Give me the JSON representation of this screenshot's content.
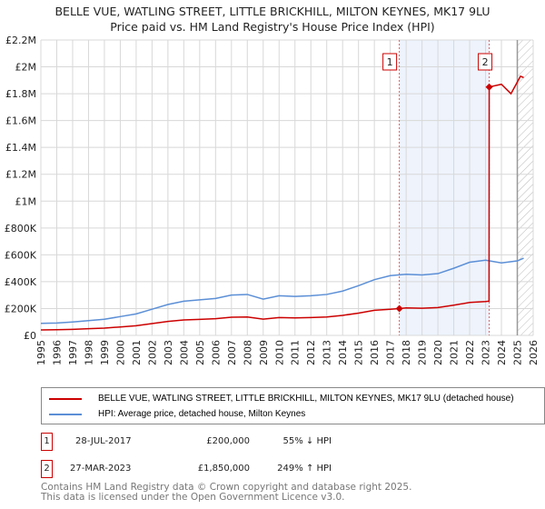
{
  "title": "BELLE VUE, WATLING STREET, LITTLE BRICKHILL, MILTON KEYNES, MK17 9LU",
  "subtitle": "Price paid vs. HM Land Registry's House Price Index (HPI)",
  "chart_data": {
    "type": "line",
    "xlim": [
      1995,
      2026
    ],
    "ylim": [
      0,
      2200000
    ],
    "x_ticks": [
      "1995",
      "1996",
      "1997",
      "1998",
      "1999",
      "2000",
      "2001",
      "2002",
      "2003",
      "2004",
      "2005",
      "2006",
      "2007",
      "2008",
      "2009",
      "2010",
      "2011",
      "2012",
      "2013",
      "2014",
      "2015",
      "2016",
      "2017",
      "2018",
      "2019",
      "2020",
      "2021",
      "2022",
      "2023",
      "2024",
      "2025",
      "2026"
    ],
    "y_ticks": [
      {
        "v": 0,
        "label": "£0"
      },
      {
        "v": 200000,
        "label": "£200K"
      },
      {
        "v": 400000,
        "label": "£400K"
      },
      {
        "v": 600000,
        "label": "£600K"
      },
      {
        "v": 800000,
        "label": "£800K"
      },
      {
        "v": 1000000,
        "label": "£1M"
      },
      {
        "v": 1200000,
        "label": "£1.2M"
      },
      {
        "v": 1400000,
        "label": "£1.4M"
      },
      {
        "v": 1600000,
        "label": "£1.6M"
      },
      {
        "v": 1800000,
        "label": "£1.8M"
      },
      {
        "v": 2000000,
        "label": "£2M"
      },
      {
        "v": 2200000,
        "label": "£2.2M"
      }
    ],
    "series": [
      {
        "name": "BELLE VUE, WATLING STREET, LITTLE BRICKHILL, MILTON KEYNES, MK17 9LU (detached house)",
        "color": "#cc0000",
        "x": [
          1995,
          1996,
          1997,
          1998,
          1999,
          2000,
          2001,
          2002,
          2003,
          2004,
          2005,
          2006,
          2007,
          2008,
          2009,
          2010,
          2011,
          2012,
          2013,
          2014,
          2015,
          2016,
          2017,
          2017.57,
          2018,
          2019,
          2020,
          2021,
          2022,
          2023,
          2023.22,
          2023.23,
          2024,
          2024.6,
          2025.2,
          2025.4
        ],
        "y": [
          41000,
          42000,
          45000,
          50000,
          54000,
          63000,
          72000,
          88000,
          104000,
          115000,
          119000,
          124000,
          135000,
          137000,
          121000,
          133000,
          130000,
          133000,
          137000,
          149000,
          166000,
          187000,
          195000,
          200000,
          205000,
          202000,
          207000,
          225000,
          245000,
          252000,
          255000,
          1850000,
          1870000,
          1800000,
          1930000,
          1920000
        ]
      },
      {
        "name": "HPI: Average price, detached house, Milton Keynes",
        "color": "#5b8fd6",
        "x": [
          1995,
          1996,
          1997,
          1998,
          1999,
          2000,
          2001,
          2002,
          2003,
          2004,
          2005,
          2006,
          2007,
          2008,
          2009,
          2010,
          2011,
          2012,
          2013,
          2014,
          2015,
          2016,
          2017,
          2018,
          2019,
          2020,
          2021,
          2022,
          2023,
          2024,
          2025,
          2025.4
        ],
        "y": [
          90000,
          92000,
          100000,
          110000,
          120000,
          140000,
          160000,
          195000,
          230000,
          255000,
          265000,
          275000,
          300000,
          305000,
          270000,
          295000,
          290000,
          295000,
          305000,
          330000,
          370000,
          415000,
          445000,
          455000,
          450000,
          460000,
          500000,
          545000,
          560000,
          540000,
          555000,
          575000
        ]
      }
    ],
    "markers": [
      {
        "id": "1",
        "x": 2017.57,
        "y": 200000
      },
      {
        "id": "2",
        "x": 2023.23,
        "y": 1850000
      }
    ],
    "forecast_from": 2025
  },
  "legend": {
    "property": "BELLE VUE, WATLING STREET, LITTLE BRICKHILL, MILTON KEYNES, MK17 9LU (detached house)",
    "hpi": "HPI: Average price, detached house, Milton Keynes"
  },
  "transactions": [
    {
      "id": "1",
      "date": "28-JUL-2017",
      "price": "£200,000",
      "hpi": "55% ↓ HPI"
    },
    {
      "id": "2",
      "date": "27-MAR-2023",
      "price": "£1,850,000",
      "hpi": "249% ↑ HPI"
    }
  ],
  "footer": [
    "Contains HM Land Registry data © Crown copyright and database right 2025.",
    "This data is licensed under the Open Government Licence v3.0."
  ]
}
